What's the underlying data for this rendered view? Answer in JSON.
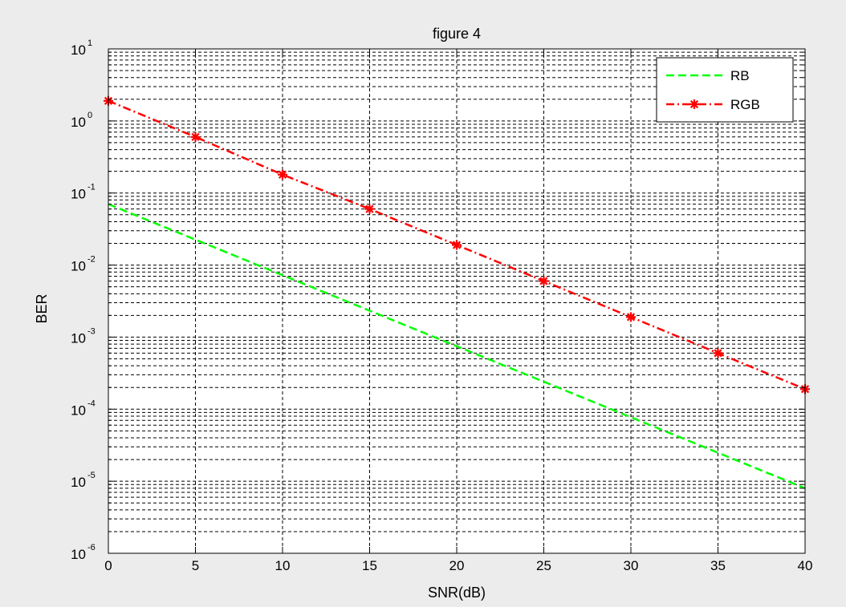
{
  "chart_data": {
    "type": "line",
    "title": "figure 4",
    "xlabel": "SNR(dB)",
    "ylabel": "BER",
    "x_scale": "linear",
    "y_scale": "log",
    "xlim": [
      0,
      40
    ],
    "ylim": [
      1e-06,
      10
    ],
    "grid": true,
    "legend_position": "top-right",
    "x_ticks": [
      "0",
      "5",
      "10",
      "15",
      "20",
      "25",
      "30",
      "35",
      "40"
    ],
    "y_ticks": [
      {
        "base": "10",
        "exp": "-6"
      },
      {
        "base": "10",
        "exp": "-5"
      },
      {
        "base": "10",
        "exp": "-4"
      },
      {
        "base": "10",
        "exp": "-3"
      },
      {
        "base": "10",
        "exp": "-2"
      },
      {
        "base": "10",
        "exp": "-1"
      },
      {
        "base": "10",
        "exp": "0"
      },
      {
        "base": "10",
        "exp": "1"
      }
    ],
    "series": [
      {
        "name": "RB",
        "color": "#00ff00",
        "line_style": "dashed",
        "marker": "none",
        "x": [
          0,
          40
        ],
        "y": [
          0.07,
          8e-06
        ]
      },
      {
        "name": "RGB",
        "color": "#ff0000",
        "line_style": "dash-dot",
        "marker": "star",
        "x": [
          0,
          5,
          10,
          15,
          20,
          25,
          30,
          35,
          40
        ],
        "y": [
          1.9,
          0.6,
          0.18,
          0.06,
          0.019,
          0.006,
          0.0019,
          0.0006,
          0.00019
        ]
      }
    ]
  }
}
